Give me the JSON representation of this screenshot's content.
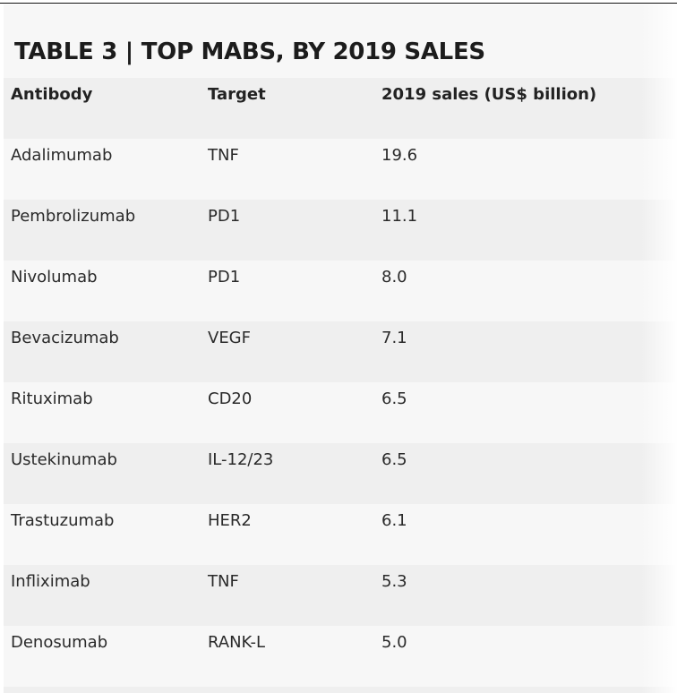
{
  "table": {
    "title": "TABLE 3 | TOP MABS, BY 2019 SALES",
    "headers": {
      "antibody": "Antibody",
      "target": "Target",
      "sales": "2019 sales (US$ billion)"
    },
    "rows": [
      {
        "antibody": "Adalimumab",
        "target": "TNF",
        "sales": "19.6"
      },
      {
        "antibody": "Pembrolizumab",
        "target": "PD1",
        "sales": "11.1"
      },
      {
        "antibody": "Nivolumab",
        "target": "PD1",
        "sales": "8.0"
      },
      {
        "antibody": "Bevacizumab",
        "target": "VEGF",
        "sales": "7.1"
      },
      {
        "antibody": "Rituximab",
        "target": "CD20",
        "sales": "6.5"
      },
      {
        "antibody": "Ustekinumab",
        "target": "IL-12/23",
        "sales": "6.5"
      },
      {
        "antibody": "Trastuzumab",
        "target": "HER2",
        "sales": "6.1"
      },
      {
        "antibody": "Infliximab",
        "target": "TNF",
        "sales": "5.3"
      },
      {
        "antibody": "Denosumab",
        "target": "RANK-L",
        "sales": "5.0"
      }
    ]
  },
  "colors": {
    "row_alt": "#efefef",
    "row_base": "#f7f7f7",
    "text": "#222222"
  }
}
